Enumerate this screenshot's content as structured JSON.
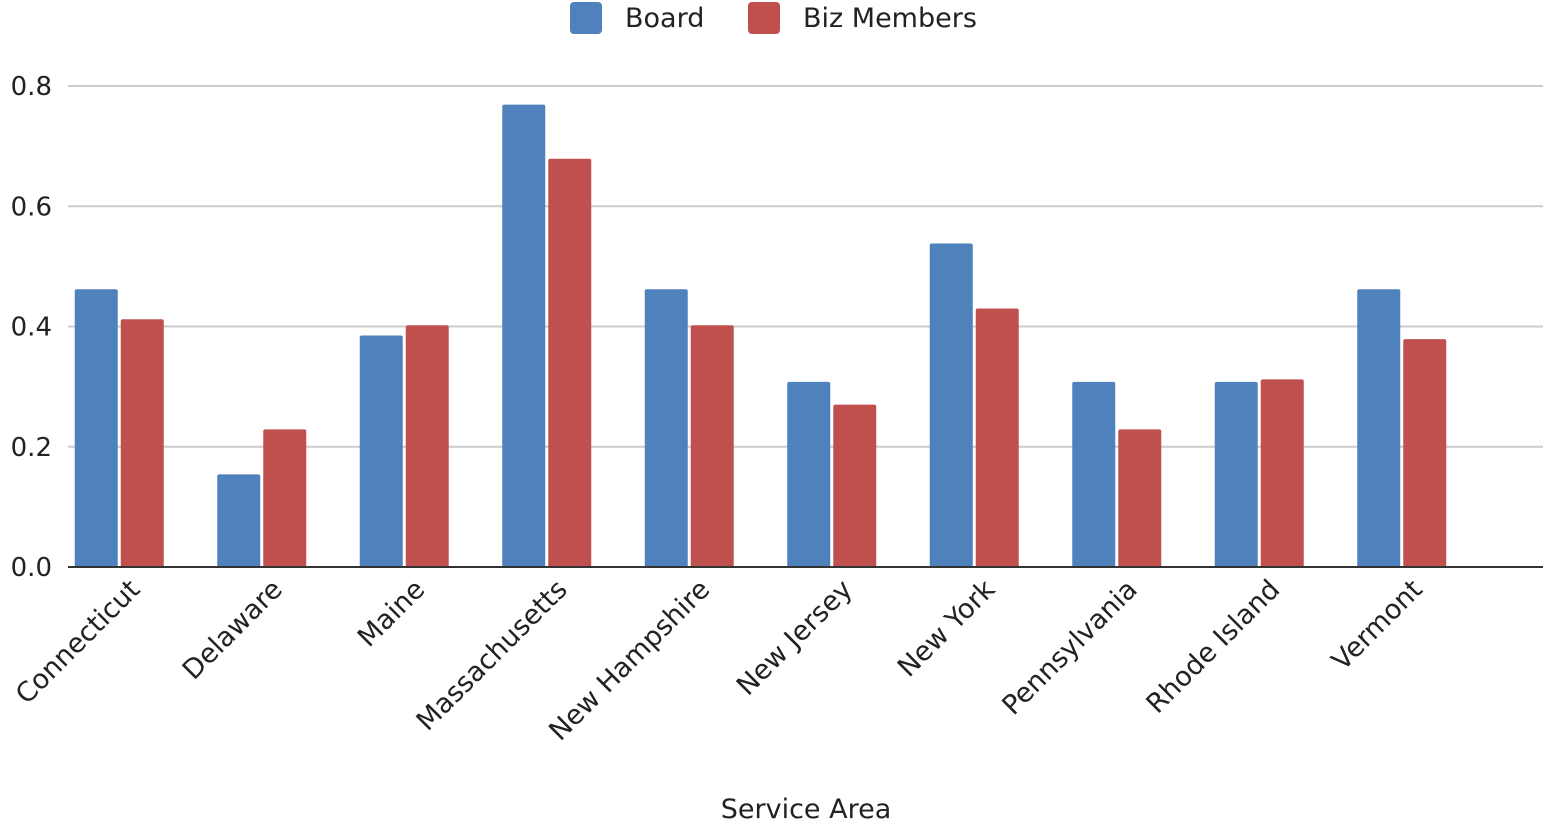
{
  "chart_data": {
    "type": "bar",
    "title": "",
    "xlabel": "Service Area",
    "ylabel": "",
    "ylim": [
      0,
      0.8
    ],
    "yticks": [
      "0.0",
      "0.2",
      "0.4",
      "0.6",
      "0.8"
    ],
    "grid": true,
    "legend_position": "top-center",
    "categories": [
      "Connecticut",
      "Delaware",
      "Maine",
      "Massachusetts",
      "New Hampshire",
      "New Jersey",
      "New York",
      "Pennsylvania",
      "Rhode Island",
      "Vermont"
    ],
    "series": [
      {
        "name": "Board",
        "color": "#4f81bd",
        "values": [
          0.462,
          0.154,
          0.385,
          0.769,
          0.462,
          0.308,
          0.538,
          0.308,
          0.308,
          0.462
        ]
      },
      {
        "name": "Biz Members",
        "color": "#c0504d",
        "values": [
          0.412,
          0.229,
          0.402,
          0.679,
          0.402,
          0.27,
          0.43,
          0.229,
          0.312,
          0.379
        ]
      }
    ]
  }
}
